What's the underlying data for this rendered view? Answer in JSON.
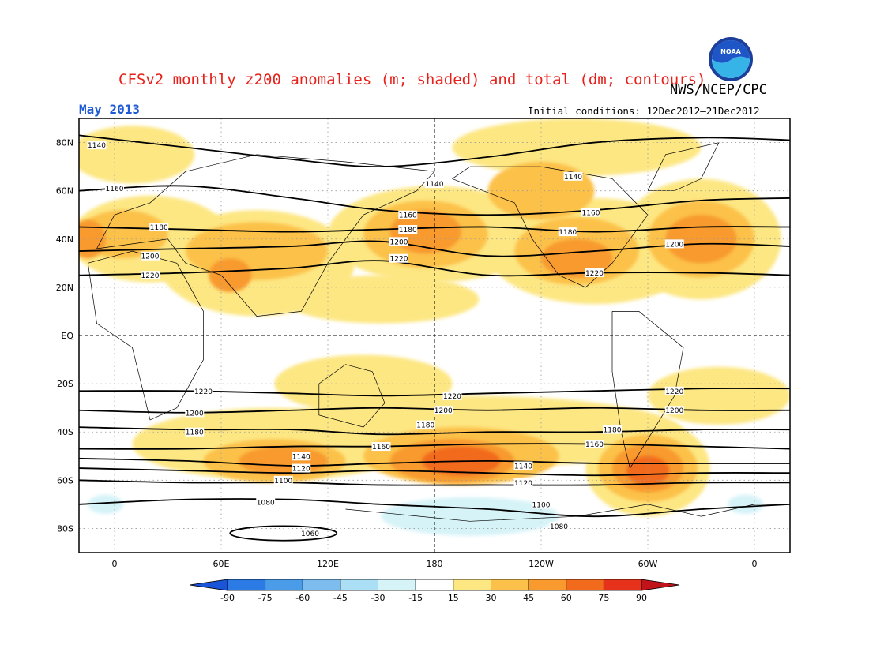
{
  "header": {
    "title": "CFSv2 monthly z200 anomalies (m; shaded) and total (dm; contours)",
    "agency": "NWS/NCEP/CPC",
    "month": "May 2013",
    "initial_conditions": "Initial conditions: 12Dec2012–21Dec2012",
    "logo_text": "NOAA"
  },
  "map": {
    "lat_labels": [
      "80N",
      "60N",
      "40N",
      "20N",
      "EQ",
      "20S",
      "40S",
      "60S",
      "80S"
    ],
    "lat_values": [
      80,
      60,
      40,
      20,
      0,
      -20,
      -40,
      -60,
      -80
    ],
    "lon_labels": [
      "0",
      "60E",
      "120E",
      "180",
      "120W",
      "60W",
      "0"
    ],
    "lon_values": [
      0,
      60,
      120,
      180,
      240,
      300,
      360
    ],
    "lon_range": [
      -20,
      380
    ],
    "lat_range": [
      -90,
      90
    ],
    "contours": [
      {
        "level": "1140",
        "lats": [
          83,
          78,
          73,
          70,
          74,
          80,
          82,
          81
        ]
      },
      {
        "level": "1160",
        "lats": [
          60,
          62,
          57,
          52,
          50,
          52,
          56,
          57
        ]
      },
      {
        "level": "1180",
        "lats": [
          45,
          44,
          43,
          44,
          45,
          43,
          45,
          45
        ]
      },
      {
        "level": "1200",
        "lats": [
          35,
          36,
          37,
          39,
          33,
          35,
          38,
          37
        ]
      },
      {
        "level": "1220",
        "lats": [
          25,
          26,
          28,
          31,
          25,
          26,
          26,
          25
        ]
      },
      {
        "level": "1220",
        "lats": [
          -23,
          -23,
          -24,
          -25,
          -24,
          -23,
          -22,
          -22
        ]
      },
      {
        "level": "1200",
        "lats": [
          -31,
          -32,
          -31,
          -30,
          -31,
          -30,
          -31,
          -31
        ]
      },
      {
        "level": "1180",
        "lats": [
          -38,
          -39,
          -39,
          -41,
          -40,
          -40,
          -39,
          -39
        ]
      },
      {
        "level": "1160",
        "lats": [
          -47,
          -47,
          -46,
          -46,
          -45,
          -45,
          -46,
          -47
        ]
      },
      {
        "level": "1140",
        "lats": [
          -51,
          -52,
          -54,
          -53,
          -52,
          -53,
          -53,
          -53
        ]
      },
      {
        "level": "1120",
        "lats": [
          -55,
          -56,
          -57,
          -56,
          -57,
          -58,
          -57,
          -57
        ]
      },
      {
        "level": "1100",
        "lats": [
          -60,
          -61,
          -61,
          -62,
          -62,
          -62,
          -61,
          -61
        ]
      },
      {
        "level": "1080",
        "lats": [
          -70,
          -68,
          -68,
          -70,
          -72,
          -75,
          -72,
          -70
        ]
      }
    ],
    "contour_lons": [
      -20,
      40,
      100,
      150,
      210,
      270,
      330,
      380
    ],
    "closed_contour": {
      "level": "1060",
      "center_lon": 95,
      "center_lat": -82,
      "lon_radius": 30,
      "lat_radius": 3
    },
    "contour_label_positions": [
      {
        "level": "1140",
        "lon": -10,
        "lat": 79
      },
      {
        "level": "1140",
        "lon": 180,
        "lat": 63
      },
      {
        "level": "1140",
        "lon": 258,
        "lat": 66
      },
      {
        "level": "1160",
        "lon": 0,
        "lat": 61
      },
      {
        "level": "1160",
        "lon": 165,
        "lat": 50
      },
      {
        "level": "1160",
        "lon": 268,
        "lat": 51
      },
      {
        "level": "1180",
        "lon": 25,
        "lat": 45
      },
      {
        "level": "1180",
        "lon": 165,
        "lat": 44
      },
      {
        "level": "1180",
        "lon": 255,
        "lat": 43
      },
      {
        "level": "1200",
        "lon": 20,
        "lat": 33
      },
      {
        "level": "1200",
        "lon": 160,
        "lat": 39
      },
      {
        "level": "1200",
        "lon": 315,
        "lat": 38
      },
      {
        "level": "1220",
        "lon": 20,
        "lat": 25
      },
      {
        "level": "1220",
        "lon": 160,
        "lat": 32
      },
      {
        "level": "1220",
        "lon": 270,
        "lat": 26
      },
      {
        "level": "1220",
        "lon": 50,
        "lat": -23
      },
      {
        "level": "1220",
        "lon": 190,
        "lat": -25
      },
      {
        "level": "1220",
        "lon": 315,
        "lat": -23
      },
      {
        "level": "1200",
        "lon": 45,
        "lat": -32
      },
      {
        "level": "1200",
        "lon": 185,
        "lat": -31
      },
      {
        "level": "1200",
        "lon": 315,
        "lat": -31
      },
      {
        "level": "1180",
        "lon": 45,
        "lat": -40
      },
      {
        "level": "1180",
        "lon": 175,
        "lat": -37
      },
      {
        "level": "1180",
        "lon": 280,
        "lat": -39
      },
      {
        "level": "1160",
        "lon": 150,
        "lat": -46
      },
      {
        "level": "1160",
        "lon": 270,
        "lat": -45
      },
      {
        "level": "1140",
        "lon": 105,
        "lat": -50
      },
      {
        "level": "1140",
        "lon": 230,
        "lat": -54
      },
      {
        "level": "1120",
        "lon": 105,
        "lat": -55
      },
      {
        "level": "1120",
        "lon": 230,
        "lat": -61
      },
      {
        "level": "1100",
        "lon": 95,
        "lat": -60
      },
      {
        "level": "1100",
        "lon": 240,
        "lat": -70
      },
      {
        "level": "1080",
        "lon": 85,
        "lat": -69
      },
      {
        "level": "1080",
        "lon": 250,
        "lat": -79
      }
    ],
    "anomaly_blobs": [
      {
        "lon": 80,
        "lat": 30,
        "rx": 55,
        "ry": 22,
        "value": 20
      },
      {
        "lon": 180,
        "lat": 42,
        "rx": 60,
        "ry": 20,
        "value": 20
      },
      {
        "lon": 270,
        "lat": 35,
        "rx": 60,
        "ry": 22,
        "value": 20
      },
      {
        "lon": 330,
        "lat": 40,
        "rx": 45,
        "ry": 25,
        "value": 20
      },
      {
        "lon": 20,
        "lat": 40,
        "rx": 45,
        "ry": 18,
        "value": 20
      },
      {
        "lon": 10,
        "lat": 75,
        "rx": 35,
        "ry": 12,
        "value": 20
      },
      {
        "lon": 260,
        "lat": 78,
        "rx": 70,
        "ry": 12,
        "value": 20
      },
      {
        "lon": 150,
        "lat": 15,
        "rx": 55,
        "ry": 10,
        "value": 20
      },
      {
        "lon": 200,
        "lat": -40,
        "rx": 120,
        "ry": 15,
        "value": 20
      },
      {
        "lon": 90,
        "lat": -45,
        "rx": 80,
        "ry": 15,
        "value": 20
      },
      {
        "lon": 340,
        "lat": -25,
        "rx": 40,
        "ry": 12,
        "value": 20
      },
      {
        "lon": 300,
        "lat": -55,
        "rx": 35,
        "ry": 20,
        "value": 20
      },
      {
        "lon": 140,
        "lat": -20,
        "rx": 50,
        "ry": 12,
        "value": 20
      },
      {
        "lon": 80,
        "lat": 35,
        "rx": 40,
        "ry": 12,
        "value": 35
      },
      {
        "lon": 175,
        "lat": 42,
        "rx": 35,
        "ry": 14,
        "value": 35
      },
      {
        "lon": 260,
        "lat": 35,
        "rx": 35,
        "ry": 14,
        "value": 35
      },
      {
        "lon": 330,
        "lat": 40,
        "rx": 30,
        "ry": 16,
        "value": 35
      },
      {
        "lon": 5,
        "lat": 42,
        "rx": 25,
        "ry": 10,
        "value": 35
      },
      {
        "lon": 240,
        "lat": 60,
        "rx": 30,
        "ry": 12,
        "value": 35
      },
      {
        "lon": 195,
        "lat": -50,
        "rx": 55,
        "ry": 12,
        "value": 35
      },
      {
        "lon": 90,
        "lat": -52,
        "rx": 40,
        "ry": 9,
        "value": 35
      },
      {
        "lon": 300,
        "lat": -55,
        "rx": 28,
        "ry": 14,
        "value": 35
      },
      {
        "lon": 175,
        "lat": 43,
        "rx": 20,
        "ry": 9,
        "value": 50
      },
      {
        "lon": 260,
        "lat": 32,
        "rx": 20,
        "ry": 8,
        "value": 50
      },
      {
        "lon": 330,
        "lat": 40,
        "rx": 20,
        "ry": 10,
        "value": 50
      },
      {
        "lon": 190,
        "lat": -52,
        "rx": 35,
        "ry": 9,
        "value": 50
      },
      {
        "lon": 95,
        "lat": -52,
        "rx": 25,
        "ry": 6,
        "value": 50
      },
      {
        "lon": 300,
        "lat": -55,
        "rx": 20,
        "ry": 10,
        "value": 50
      },
      {
        "lon": -15,
        "lat": 40,
        "rx": 10,
        "ry": 8,
        "value": 50
      },
      {
        "lon": 65,
        "lat": 25,
        "rx": 12,
        "ry": 7,
        "value": 50
      },
      {
        "lon": 195,
        "lat": -52,
        "rx": 22,
        "ry": 6,
        "value": 65
      },
      {
        "lon": 300,
        "lat": -56,
        "rx": 12,
        "ry": 6,
        "value": 65
      },
      {
        "lon": 200,
        "lat": -75,
        "rx": 50,
        "ry": 8,
        "value": -20
      },
      {
        "lon": -5,
        "lat": -70,
        "rx": 10,
        "ry": 4,
        "value": -20
      },
      {
        "lon": 355,
        "lat": -70,
        "rx": 10,
        "ry": 4,
        "value": -20
      }
    ]
  },
  "colorbar": {
    "labels": [
      "-90",
      "-75",
      "-60",
      "-45",
      "-30",
      "-15",
      "15",
      "30",
      "45",
      "60",
      "75",
      "90"
    ],
    "colors": [
      "#1a54d8",
      "#2c7ae4",
      "#4a9be8",
      "#7cbcee",
      "#aadff5",
      "#d6f3f8",
      "#ffffff",
      "#fde783",
      "#fcc14a",
      "#f89a2e",
      "#f26a1c",
      "#e6321a",
      "#c1141a"
    ]
  }
}
